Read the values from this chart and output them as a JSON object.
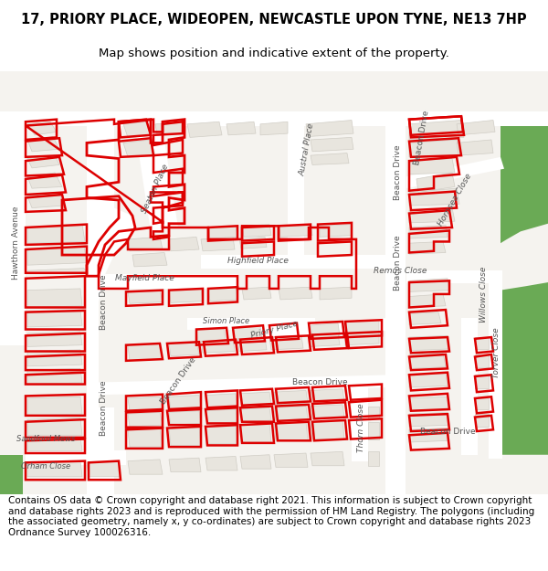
{
  "title_line1": "17, PRIORY PLACE, WIDEOPEN, NEWCASTLE UPON TYNE, NE13 7HP",
  "title_line2": "Map shows position and indicative extent of the property.",
  "footer_text": "Contains OS data © Crown copyright and database right 2021. This information is subject to Crown copyright and database rights 2023 and is reproduced with the permission of HM Land Registry. The polygons (including the associated geometry, namely x, y co-ordinates) are subject to Crown copyright and database rights 2023 Ordnance Survey 100026316.",
  "title_fontsize": 10.5,
  "subtitle_fontsize": 9.5,
  "footer_fontsize": 7.5,
  "map_bg": "#f5f3ef",
  "road_color": "#ffffff",
  "building_fill": "#e8e5de",
  "building_edge": "#d0cdc5",
  "red_color": "#dd0000",
  "green_color": "#6aaa55",
  "label_color": "#555555",
  "road_labels": [
    [
      18,
      220,
      "Hawthorn Avenue",
      90,
      6.5
    ],
    [
      113,
      295,
      "Beacon Drive",
      90,
      6.5
    ],
    [
      113,
      430,
      "Beacon Drive",
      90,
      6.5
    ],
    [
      158,
      265,
      "Mayfield Place",
      0,
      6.5
    ],
    [
      282,
      243,
      "Highfield Place",
      0,
      6.5
    ],
    [
      435,
      245,
      "Beacon Drive",
      90,
      6.5
    ],
    [
      435,
      130,
      "Beacon Drive",
      90,
      6.5
    ],
    [
      300,
      330,
      "Priory Place",
      15,
      6.5
    ],
    [
      248,
      320,
      "Simon Place",
      0,
      6.0
    ],
    [
      438,
      255,
      "Remus Close",
      0,
      6.5
    ],
    [
      498,
      165,
      "Hornsea Close",
      60,
      6.5
    ],
    [
      544,
      360,
      "Torver Close",
      90,
      6.5
    ],
    [
      195,
      395,
      "Beacon Drive",
      55,
      6.5
    ],
    [
      50,
      470,
      "Sandford Mews",
      0,
      6.0
    ],
    [
      350,
      398,
      "Beacon Drive",
      0,
      6.5
    ],
    [
      490,
      460,
      "Beacon Drive",
      0,
      6.5
    ],
    [
      530,
      285,
      "Willows Close",
      90,
      6.5
    ],
    [
      395,
      455,
      "Thorn Close",
      90,
      6.5
    ],
    [
      170,
      150,
      "Seaton Place",
      65,
      6.5
    ],
    [
      336,
      100,
      "Austral Place",
      80,
      6.5
    ],
    [
      462,
      85,
      "Beacon Drive",
      80,
      6.5
    ],
    [
      50,
      505,
      "Orham Close",
      0,
      6.0
    ]
  ]
}
